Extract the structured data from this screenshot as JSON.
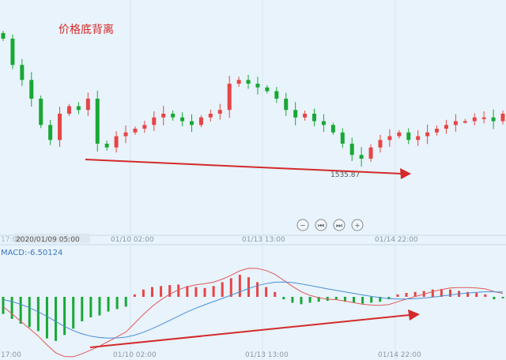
{
  "annotation": "价格底背离",
  "price_chart": {
    "low_label": "1535.87",
    "x_tick_labels": [
      "17:00",
      "2020/01/09 05:00",
      "01/10 02:00",
      "01/13 13:00",
      "01/14 22:00"
    ],
    "controls": [
      {
        "name": "zoom-out-button",
        "glyph": "−"
      },
      {
        "name": "prev-button",
        "glyph": "⏮"
      },
      {
        "name": "next-button",
        "glyph": "⏭"
      },
      {
        "name": "zoom-in-button",
        "glyph": "+"
      }
    ]
  },
  "macd_chart": {
    "label": "MACD:-6.50124",
    "x_tick_labels": [
      "17:00",
      "01/10 02:00",
      "01/13 13:00",
      "01/14 22:00"
    ]
  },
  "colors": {
    "up": "#e64545",
    "down": "#18a835",
    "arrow": "#d42a2a",
    "macd_line": "#e25a5a",
    "signal_line": "#4a8fd6",
    "background": "#e8f3fb",
    "divider": "#c7d9e8"
  },
  "chart_data": [
    {
      "type": "candlestick",
      "title": "价格底背离",
      "x_tick_labels": [
        "17:00",
        "2020/01/09 05:00",
        "01/10 02:00",
        "01/13 13:00",
        "01/14 22:00"
      ],
      "low_annotation": "1535.87",
      "close_trend": [
        1568,
        1561,
        1557,
        1552,
        1545,
        1541,
        1548,
        1550,
        1549,
        1552,
        1540,
        1539,
        1542,
        1543,
        1544,
        1545,
        1547,
        1548,
        1547,
        1546,
        1545,
        1547,
        1548,
        1549,
        1556,
        1557,
        1556,
        1555,
        1554,
        1552,
        1549,
        1547,
        1548,
        1546,
        1545,
        1543,
        1540,
        1537,
        1536,
        1539,
        1541,
        1542,
        1543,
        1541,
        1542,
        1543,
        1544,
        1545,
        1546,
        1546,
        1547,
        1547,
        1546,
        1548
      ],
      "trend_arrow": "down"
    },
    {
      "type": "bar+line",
      "label": "MACD:-6.50124",
      "x_tick_labels": [
        "17:00",
        "01/10 02:00",
        "01/13 13:00",
        "01/14 22:00"
      ],
      "histogram": [
        -0.35,
        -0.45,
        -0.55,
        -0.62,
        -0.7,
        -0.85,
        -0.9,
        -0.78,
        -0.65,
        -0.5,
        -0.42,
        -0.38,
        -0.3,
        -0.25,
        -0.2,
        0.05,
        0.15,
        0.2,
        0.22,
        0.24,
        0.25,
        0.22,
        0.2,
        0.18,
        0.22,
        0.3,
        0.38,
        0.45,
        0.4,
        0.3,
        0.2,
        0.1,
        -0.05,
        -0.12,
        -0.15,
        -0.12,
        -0.1,
        -0.08,
        -0.05,
        -0.1,
        -0.12,
        -0.14,
        -0.12,
        -0.1,
        -0.05,
        0.05,
        0.08,
        0.1,
        0.12,
        0.15,
        0.16,
        0.15,
        0.12,
        0.1,
        0.08,
        0.05,
        -0.05,
        -0.03
      ],
      "trend_arrow": "up",
      "series": [
        {
          "name": "MACD",
          "color": "#e25a5a"
        },
        {
          "name": "Signal",
          "color": "#4a8fd6"
        }
      ]
    }
  ]
}
